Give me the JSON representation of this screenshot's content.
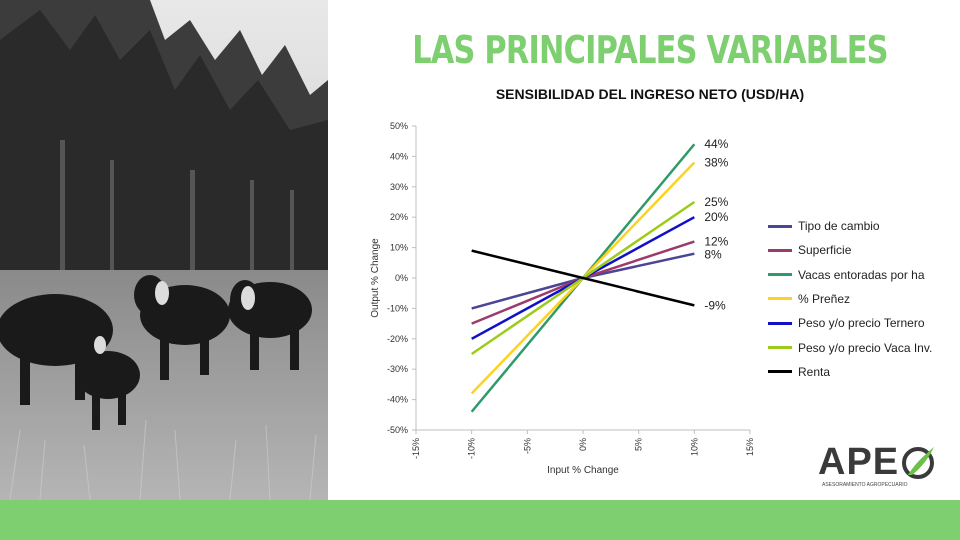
{
  "slide": {
    "title": "LAS PRINCIPALES VARIABLES",
    "title_color": "#7dcf6f",
    "bar_color": "#7dcf6f",
    "photo": "grayscale-cattle-in-pasture-image"
  },
  "logo": {
    "text": "APE",
    "tagline": "ASESORAMIENTO AGROPECUARIO",
    "mark": "leaf-circle-icon",
    "mark_color": "#6cc04a"
  },
  "chart_data": {
    "type": "line",
    "title": "SENSIBILIDAD DEL INGRESO NETO (USD/HA)",
    "xlabel": "Input % Change",
    "ylabel": "Output % Change",
    "xlim": [
      -15,
      15
    ],
    "ylim": [
      -50,
      50
    ],
    "x_ticks": [
      "-15%",
      "-10%",
      "-5%",
      "0%",
      "5%",
      "10%",
      "15%"
    ],
    "y_ticks": [
      "50%",
      "40%",
      "30%",
      "20%",
      "10%",
      "0%",
      "-10%",
      "-20%",
      "-30%",
      "-40%",
      "-50%"
    ],
    "x": [
      -10,
      0,
      10
    ],
    "grid": false,
    "legend_position": "right",
    "series": [
      {
        "name": "Tipo de cambio",
        "color": "#4b4596",
        "values": [
          -10,
          0,
          8
        ],
        "end_label": "8%"
      },
      {
        "name": "Superficie",
        "color": "#9c3a6c",
        "values": [
          -15,
          0,
          12
        ],
        "end_label": "12%"
      },
      {
        "name": "Vacas entoradas por ha",
        "color": "#2e9a6a",
        "values": [
          -44,
          0,
          44
        ],
        "end_label": "44%"
      },
      {
        "name": "% Preñez",
        "color": "#ffd21f",
        "values": [
          -38,
          0,
          38
        ],
        "end_label": "38%"
      },
      {
        "name": "Peso y/o precio Ternero",
        "color": "#1010cc",
        "values": [
          -20,
          0,
          20
        ],
        "end_label": "20%"
      },
      {
        "name": "Peso y/o precio Vaca Inv.",
        "color": "#9ccc1a",
        "values": [
          -25,
          0,
          25
        ],
        "end_label": "25%"
      },
      {
        "name": "Renta",
        "color": "#000000",
        "values": [
          9,
          0,
          -9
        ],
        "end_label": "-9%"
      }
    ]
  }
}
